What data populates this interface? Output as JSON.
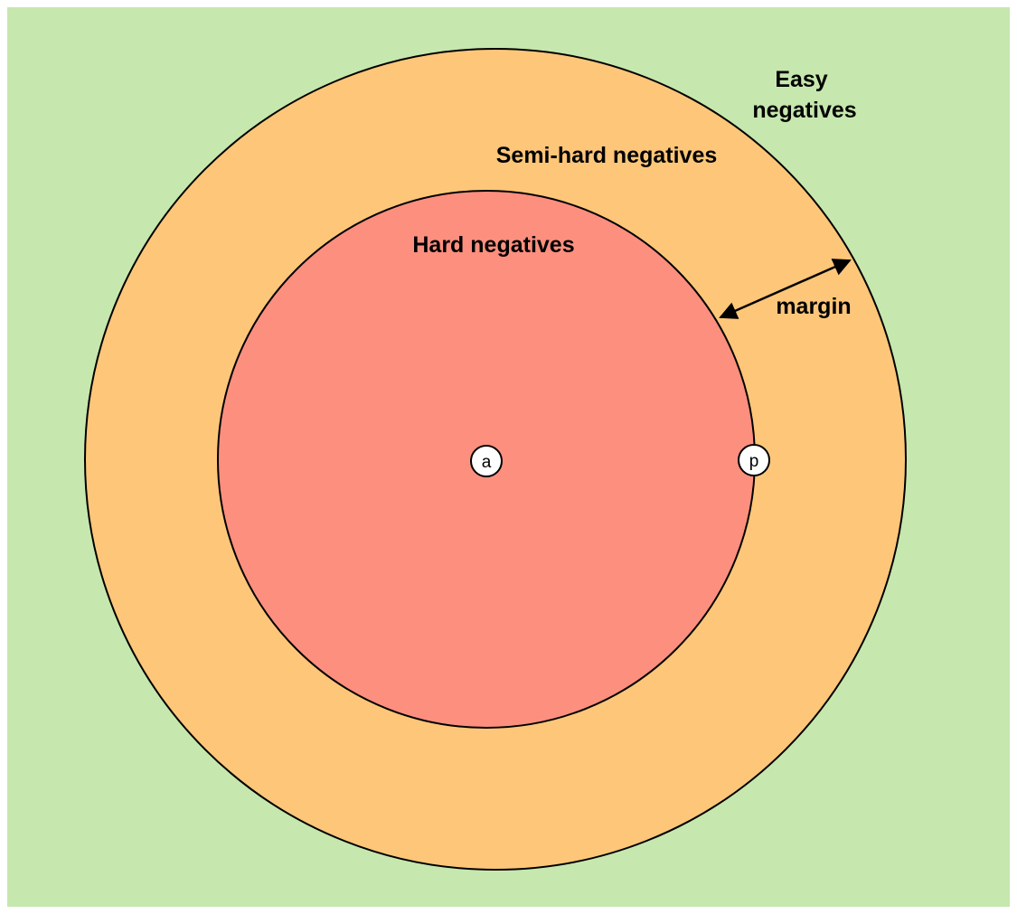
{
  "colors": {
    "easy_region": "#c6e7ae",
    "semi_hard_region": "#fdc679",
    "hard_region": "#fd8f7f",
    "outline": "#000000",
    "point_fill": "#ffffff"
  },
  "regions": {
    "easy": {
      "label_line1": "Easy",
      "label_line2": "negatives"
    },
    "semi_hard": {
      "label": "Semi-hard negatives"
    },
    "hard": {
      "label": "Hard negatives"
    }
  },
  "points": {
    "anchor": {
      "label": "a"
    },
    "positive": {
      "label": "p"
    }
  },
  "margin": {
    "label": "margin"
  }
}
